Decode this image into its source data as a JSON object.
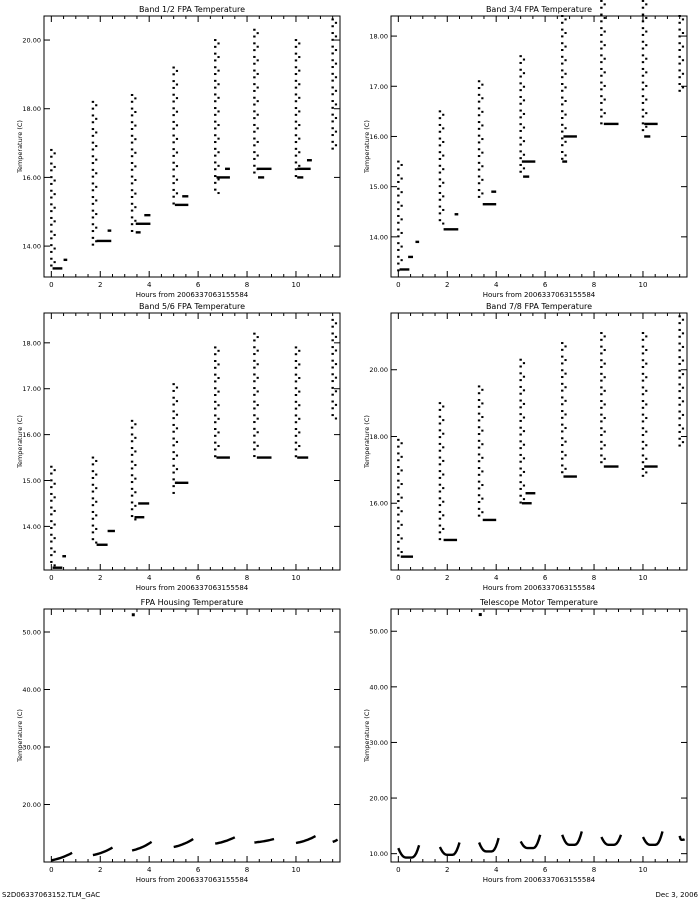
{
  "chart_data": [
    {
      "type": "scatter",
      "title": "Band 1/2 FPA Temperature",
      "xlabel": "Hours from 2006337063155584",
      "ylabel": "Temperature (C)",
      "xlim": [
        -0.3,
        11.8
      ],
      "ylim": [
        13.1,
        20.7
      ],
      "xticks": [
        0,
        2,
        4,
        6,
        8,
        10
      ],
      "yticks": [
        14.0,
        16.0,
        18.0,
        20.0
      ],
      "ytick_labels": [
        "14.00",
        "16.00",
        "18.00",
        "20.00"
      ],
      "groups": [
        {
          "x": 0.0,
          "min": 13.4,
          "max": 16.8
        },
        {
          "x": 1.7,
          "min": 13.9,
          "max": 18.2
        },
        {
          "x": 3.3,
          "min": 14.4,
          "max": 18.4
        },
        {
          "x": 5.0,
          "min": 15.2,
          "max": 19.2
        },
        {
          "x": 6.7,
          "min": 15.5,
          "max": 20.0
        },
        {
          "x": 8.3,
          "min": 16.0,
          "max": 20.3
        },
        {
          "x": 10.0,
          "min": 16.0,
          "max": 20.0
        },
        {
          "x": 11.5,
          "min": 16.8,
          "max": 20.6
        }
      ],
      "plateaus": [
        {
          "x0": 0.05,
          "x1": 0.45,
          "y": 13.35
        },
        {
          "x0": 0.5,
          "x1": 0.65,
          "y": 13.6
        },
        {
          "x0": 1.85,
          "x1": 2.45,
          "y": 14.15
        },
        {
          "x0": 2.3,
          "x1": 2.45,
          "y": 14.45
        },
        {
          "x0": 3.45,
          "x1": 4.05,
          "y": 14.65
        },
        {
          "x0": 3.45,
          "x1": 3.65,
          "y": 14.4
        },
        {
          "x0": 3.8,
          "x1": 4.05,
          "y": 14.9
        },
        {
          "x0": 5.05,
          "x1": 5.6,
          "y": 15.2
        },
        {
          "x0": 5.35,
          "x1": 5.6,
          "y": 15.45
        },
        {
          "x0": 6.75,
          "x1": 7.3,
          "y": 16.0
        },
        {
          "x0": 7.1,
          "x1": 7.3,
          "y": 16.25
        },
        {
          "x0": 8.4,
          "x1": 9.0,
          "y": 16.25
        },
        {
          "x0": 8.45,
          "x1": 8.7,
          "y": 16.0
        },
        {
          "x0": 10.05,
          "x1": 10.6,
          "y": 16.25
        },
        {
          "x0": 10.05,
          "x1": 10.3,
          "y": 16.0
        },
        {
          "x0": 10.45,
          "x1": 10.65,
          "y": 16.5
        }
      ]
    },
    {
      "type": "scatter",
      "title": "Band 3/4 FPA Temperature",
      "xlabel": "Hours from 2006337063155584",
      "ylabel": "Temperature (C)",
      "xlim": [
        -0.3,
        11.8
      ],
      "ylim": [
        13.2,
        18.4
      ],
      "xticks": [
        0,
        2,
        4,
        6,
        8,
        10
      ],
      "yticks": [
        14.0,
        15.0,
        16.0,
        17.0,
        18.0
      ],
      "ytick_labels": [
        "14.00",
        "15.00",
        "16.00",
        "17.00",
        "18.00"
      ],
      "groups": [
        {
          "x": 0.0,
          "min": 13.3,
          "max": 15.5
        },
        {
          "x": 1.7,
          "min": 14.2,
          "max": 16.5
        },
        {
          "x": 3.3,
          "min": 14.7,
          "max": 17.1
        },
        {
          "x": 5.0,
          "min": 15.2,
          "max": 17.6
        },
        {
          "x": 6.7,
          "min": 15.5,
          "max": 18.4
        },
        {
          "x": 8.3,
          "min": 16.2,
          "max": 18.7
        },
        {
          "x": 10.0,
          "min": 16.0,
          "max": 18.7
        },
        {
          "x": 11.5,
          "min": 16.8,
          "max": 18.4
        }
      ],
      "plateaus": [
        {
          "x0": 0.05,
          "x1": 0.45,
          "y": 13.35
        },
        {
          "x0": 0.4,
          "x1": 0.6,
          "y": 13.6
        },
        {
          "x0": 0.7,
          "x1": 0.85,
          "y": 13.9
        },
        {
          "x0": 1.85,
          "x1": 2.45,
          "y": 14.15
        },
        {
          "x0": 2.3,
          "x1": 2.45,
          "y": 14.45
        },
        {
          "x0": 3.45,
          "x1": 4.0,
          "y": 14.65
        },
        {
          "x0": 3.8,
          "x1": 4.0,
          "y": 14.9
        },
        {
          "x0": 5.05,
          "x1": 5.6,
          "y": 15.5
        },
        {
          "x0": 5.1,
          "x1": 5.35,
          "y": 15.2
        },
        {
          "x0": 6.75,
          "x1": 7.3,
          "y": 16.0
        },
        {
          "x0": 6.7,
          "x1": 6.9,
          "y": 15.5
        },
        {
          "x0": 8.4,
          "x1": 9.0,
          "y": 16.25
        },
        {
          "x0": 10.05,
          "x1": 10.6,
          "y": 16.25
        },
        {
          "x0": 10.05,
          "x1": 10.3,
          "y": 16.0
        }
      ]
    },
    {
      "type": "scatter",
      "title": "Band 5/6 FPA Temperature",
      "xlabel": "Hours from 2006337063155584",
      "ylabel": "Temperature (C)",
      "xlim": [
        -0.3,
        11.8
      ],
      "ylim": [
        13.05,
        18.65
      ],
      "xticks": [
        0,
        2,
        4,
        6,
        8,
        10
      ],
      "yticks": [
        14.0,
        15.0,
        16.0,
        17.0,
        18.0
      ],
      "ytick_labels": [
        "14.00",
        "15.00",
        "16.00",
        "17.00",
        "18.00"
      ],
      "groups": [
        {
          "x": 0.0,
          "min": 13.1,
          "max": 15.3
        },
        {
          "x": 1.7,
          "min": 13.6,
          "max": 15.5
        },
        {
          "x": 3.3,
          "min": 14.1,
          "max": 16.3
        },
        {
          "x": 5.0,
          "min": 14.7,
          "max": 17.1
        },
        {
          "x": 6.7,
          "min": 15.5,
          "max": 17.9
        },
        {
          "x": 8.3,
          "min": 15.5,
          "max": 18.2
        },
        {
          "x": 10.0,
          "min": 15.5,
          "max": 17.9
        },
        {
          "x": 11.5,
          "min": 16.3,
          "max": 18.5
        }
      ],
      "plateaus": [
        {
          "x0": 0.05,
          "x1": 0.45,
          "y": 13.1
        },
        {
          "x0": 0.45,
          "x1": 0.6,
          "y": 13.35
        },
        {
          "x0": 1.85,
          "x1": 2.3,
          "y": 13.6
        },
        {
          "x0": 2.3,
          "x1": 2.6,
          "y": 13.9
        },
        {
          "x0": 3.4,
          "x1": 3.8,
          "y": 14.2
        },
        {
          "x0": 3.55,
          "x1": 4.0,
          "y": 14.5
        },
        {
          "x0": 5.05,
          "x1": 5.6,
          "y": 14.95
        },
        {
          "x0": 6.75,
          "x1": 7.3,
          "y": 15.5
        },
        {
          "x0": 8.4,
          "x1": 9.0,
          "y": 15.5
        },
        {
          "x0": 10.05,
          "x1": 10.5,
          "y": 15.5
        }
      ]
    },
    {
      "type": "scatter",
      "title": "Band 7/8 FPA Temperature",
      "xlabel": "Hours from 2006337063155584",
      "ylabel": "Temperature (C)",
      "xlim": [
        -0.3,
        11.8
      ],
      "ylim": [
        14.0,
        21.7
      ],
      "xticks": [
        0,
        2,
        4,
        6,
        8,
        10
      ],
      "yticks": [
        16.0,
        18.0,
        20.0
      ],
      "ytick_labels": [
        "16.00",
        "18.00",
        "20.00"
      ],
      "groups": [
        {
          "x": 0.0,
          "min": 14.4,
          "max": 17.9
        },
        {
          "x": 1.7,
          "min": 14.9,
          "max": 19.0
        },
        {
          "x": 3.3,
          "min": 15.5,
          "max": 19.5
        },
        {
          "x": 5.0,
          "min": 16.0,
          "max": 20.3
        },
        {
          "x": 6.7,
          "min": 16.8,
          "max": 20.8
        },
        {
          "x": 8.3,
          "min": 17.1,
          "max": 21.1
        },
        {
          "x": 10.0,
          "min": 16.8,
          "max": 21.1
        },
        {
          "x": 11.5,
          "min": 17.6,
          "max": 21.6
        }
      ],
      "plateaus": [
        {
          "x0": 0.1,
          "x1": 0.6,
          "y": 14.4
        },
        {
          "x0": 1.85,
          "x1": 2.4,
          "y": 14.9
        },
        {
          "x0": 3.45,
          "x1": 4.0,
          "y": 15.5
        },
        {
          "x0": 5.05,
          "x1": 5.45,
          "y": 16.0
        },
        {
          "x0": 5.2,
          "x1": 5.6,
          "y": 16.3
        },
        {
          "x0": 6.75,
          "x1": 7.3,
          "y": 16.8
        },
        {
          "x0": 8.4,
          "x1": 9.0,
          "y": 17.1
        },
        {
          "x0": 10.05,
          "x1": 10.6,
          "y": 17.1
        }
      ]
    },
    {
      "type": "scatter",
      "title": "FPA Housing Temperature",
      "xlabel": "Hours from 2006337063155584",
      "ylabel": "Temperature (C)",
      "xlim": [
        -0.3,
        11.8
      ],
      "ylim": [
        10.0,
        54.0
      ],
      "xticks": [
        0,
        2,
        4,
        6,
        8,
        10
      ],
      "yticks": [
        20.0,
        30.0,
        40.0,
        50.0
      ],
      "ytick_labels": [
        "20.00",
        "30.00",
        "40.00",
        "50.00"
      ],
      "segments": [
        {
          "x0": 0.0,
          "x1": 0.85,
          "y0": 10.3,
          "y1": 11.6
        },
        {
          "x0": 1.7,
          "x1": 2.5,
          "y0": 11.2,
          "y1": 12.5
        },
        {
          "x0": 3.3,
          "x1": 4.1,
          "y0": 12.0,
          "y1": 13.5
        },
        {
          "x0": 5.0,
          "x1": 5.8,
          "y0": 12.6,
          "y1": 14.0
        },
        {
          "x0": 6.7,
          "x1": 7.5,
          "y0": 13.2,
          "y1": 14.3
        },
        {
          "x0": 8.3,
          "x1": 9.1,
          "y0": 13.4,
          "y1": 14.0
        },
        {
          "x0": 10.0,
          "x1": 10.8,
          "y0": 13.3,
          "y1": 14.5
        },
        {
          "x0": 11.5,
          "x1": 11.7,
          "y0": 13.5,
          "y1": 13.9
        }
      ],
      "outliers": [
        {
          "x": 3.35,
          "y": 53.0
        }
      ]
    },
    {
      "type": "scatter",
      "title": "Telescope Motor Temperature",
      "xlabel": "Hours from 2006337063155584",
      "ylabel": "Temperature (C)",
      "xlim": [
        -0.3,
        11.8
      ],
      "ylim": [
        8.5,
        54.0
      ],
      "xticks": [
        0,
        2,
        4,
        6,
        8,
        10
      ],
      "yticks": [
        10.0,
        20.0,
        30.0,
        40.0,
        50.0
      ],
      "ytick_labels": [
        "10.00",
        "20.00",
        "30.00",
        "40.00",
        "50.00"
      ],
      "curves": [
        {
          "x0": 0.0,
          "x1": 0.85,
          "ystart": 11.0,
          "ymin": 9.3,
          "yend": 11.5
        },
        {
          "x0": 1.7,
          "x1": 2.5,
          "ystart": 11.2,
          "ymin": 9.8,
          "yend": 12.0
        },
        {
          "x0": 3.3,
          "x1": 4.1,
          "ystart": 12.0,
          "ymin": 10.4,
          "yend": 12.8
        },
        {
          "x0": 5.0,
          "x1": 5.8,
          "ystart": 12.2,
          "ymin": 11.0,
          "yend": 13.4
        },
        {
          "x0": 6.7,
          "x1": 7.5,
          "ystart": 13.4,
          "ymin": 11.6,
          "yend": 14.0
        },
        {
          "x0": 8.3,
          "x1": 9.1,
          "ystart": 13.0,
          "ymin": 11.6,
          "yend": 13.4
        },
        {
          "x0": 10.0,
          "x1": 10.8,
          "ystart": 13.0,
          "ymin": 11.6,
          "yend": 14.0
        },
        {
          "x0": 11.5,
          "x1": 11.7,
          "ystart": 13.2,
          "ymin": 12.5,
          "yend": 12.6
        }
      ],
      "outliers": [
        {
          "x": 3.35,
          "y": 53.0
        }
      ]
    }
  ],
  "footer": {
    "left": "S2D06337063152.TLM_GAC",
    "right": "Dec  3, 2006"
  }
}
